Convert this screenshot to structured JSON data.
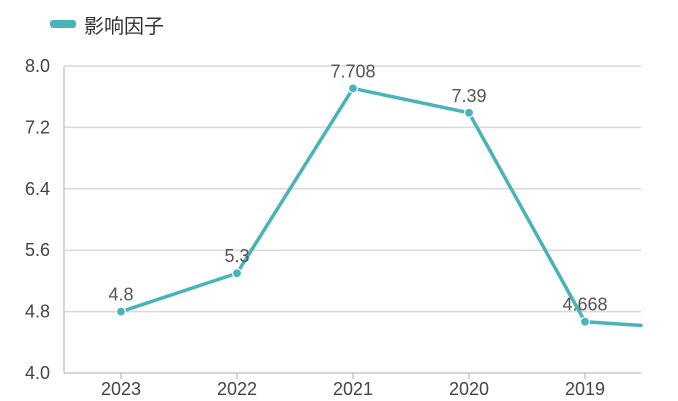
{
  "colors": {
    "series": "#4ab3ba",
    "grid": "#d9d9d9",
    "axis": "#c8c8c8"
  },
  "chart_data": {
    "type": "line",
    "categories": [
      "2023",
      "2022",
      "2021",
      "2020",
      "2019"
    ],
    "series": [
      {
        "name": "影响因子",
        "values": [
          4.8,
          5.3,
          7.708,
          7.39,
          4.668
        ],
        "labels": [
          "4.8",
          "5.3",
          "7.708",
          "7.39",
          "4.668"
        ]
      }
    ],
    "trailing_value": 4.62,
    "ylim": [
      4.0,
      8.0
    ],
    "yticks": [
      "4.0",
      "4.8",
      "5.6",
      "6.4",
      "7.2",
      "8.0"
    ],
    "grid": true,
    "legend": "top-left"
  }
}
